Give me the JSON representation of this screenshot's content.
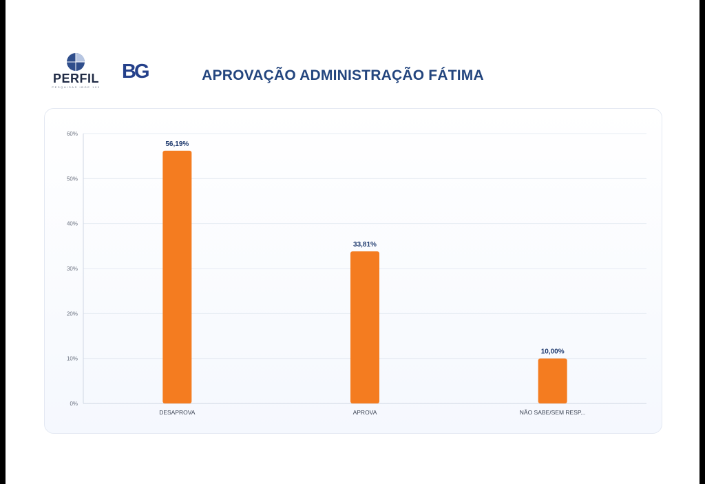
{
  "header": {
    "title": "APROVAÇÃO ADMINISTRAÇÃO FÁTIMA",
    "logo_perfil": {
      "brand": "PERFIL",
      "tagline": "PESQUISAS IBGE 100"
    },
    "logo_bg": "BG"
  },
  "colors": {
    "bar": "#f47c20",
    "title": "#23457e",
    "value_label": "#1f3a6e",
    "axis_text": "#6b7280",
    "grid": "#e6ebf3"
  },
  "chart_data": {
    "type": "bar",
    "categories": [
      "DESAPROVA",
      "APROVA",
      "NÃO SABE/SEM RESP..."
    ],
    "values": [
      56.19,
      33.81,
      10.0
    ],
    "value_labels": [
      "56,19%",
      "33,81%",
      "10,00%"
    ],
    "yticks": [
      "0%",
      "10%",
      "20%",
      "30%",
      "40%",
      "50%",
      "60%"
    ],
    "ylim": [
      0,
      60
    ],
    "title": "",
    "xlabel": "",
    "ylabel": "",
    "grid": true,
    "legend": "none"
  }
}
